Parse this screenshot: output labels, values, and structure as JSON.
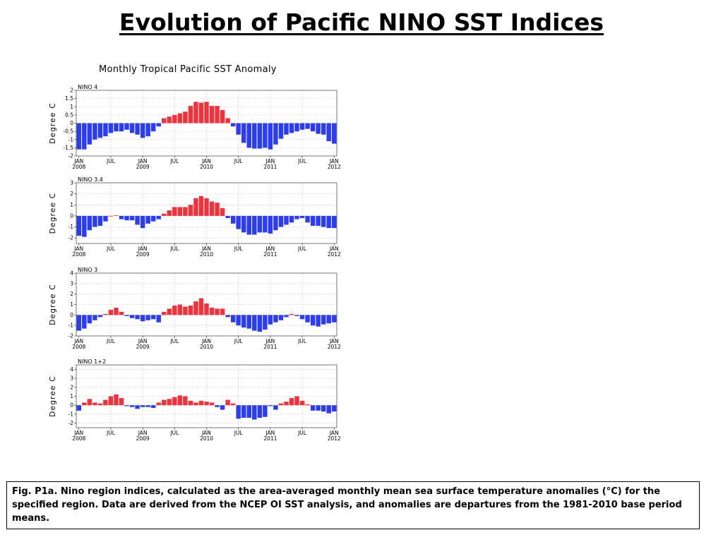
{
  "slide": {
    "title": "Evolution of Pacific NINO SST Indices"
  },
  "figure": {
    "title": "Monthly Tropical Pacific SST Anomaly"
  },
  "colors": {
    "positive": "#f0323c",
    "negative": "#2c3cf0",
    "grid": "#b0b0b0"
  },
  "chart_data": [
    {
      "type": "bar",
      "panel": "NINO  4",
      "ylabel": "Degree C",
      "ylim": [
        -2,
        2
      ],
      "yticks": [
        -2,
        -1.5,
        -1,
        -0.5,
        0,
        0.5,
        1,
        1.5,
        2
      ],
      "ytick_labels": [
        "-2",
        "-1.5",
        "-1",
        "-0.5",
        "0",
        "0.5",
        "1",
        "1.5",
        "2"
      ],
      "xtick_labels": [
        [
          "JAN",
          "2008"
        ],
        [
          "JUL",
          ""
        ],
        [
          "JAN",
          "2009"
        ],
        [
          "JUL",
          ""
        ],
        [
          "JAN",
          "2010"
        ],
        [
          "JUL",
          ""
        ],
        [
          "JAN",
          "2011"
        ],
        [
          "JUL",
          ""
        ],
        [
          "JAN",
          "2012"
        ]
      ],
      "grid": true,
      "x_start": "2008-01",
      "values": [
        -1.6,
        -1.6,
        -1.3,
        -1.0,
        -0.9,
        -0.8,
        -0.6,
        -0.5,
        -0.5,
        -0.4,
        -0.6,
        -0.7,
        -0.9,
        -0.8,
        -0.5,
        -0.2,
        0.3,
        0.4,
        0.5,
        0.6,
        0.7,
        1.05,
        1.3,
        1.25,
        1.3,
        1.05,
        1.05,
        0.8,
        0.3,
        -0.2,
        -0.7,
        -1.2,
        -1.5,
        -1.55,
        -1.55,
        -1.5,
        -1.6,
        -1.3,
        -0.95,
        -0.7,
        -0.6,
        -0.5,
        -0.4,
        -0.35,
        -0.5,
        -0.65,
        -0.7,
        -1.1,
        -1.25
      ]
    },
    {
      "type": "bar",
      "panel": "NINO  3.4",
      "ylabel": "Degree C",
      "ylim": [
        -2.5,
        3
      ],
      "yticks": [
        -2,
        -1,
        0,
        1,
        2,
        3
      ],
      "ytick_labels": [
        "-2",
        "-1",
        "0",
        "1",
        "2",
        "3"
      ],
      "xtick_labels": [
        [
          "JAN",
          "2008"
        ],
        [
          "JUL",
          ""
        ],
        [
          "JAN",
          "2009"
        ],
        [
          "JUL",
          ""
        ],
        [
          "JAN",
          "2010"
        ],
        [
          "JUL",
          ""
        ],
        [
          "JAN",
          "2011"
        ],
        [
          "JUL",
          ""
        ],
        [
          "JAN",
          "2012"
        ]
      ],
      "grid": true,
      "x_start": "2008-01",
      "values": [
        -1.8,
        -1.9,
        -1.3,
        -1.0,
        -0.9,
        -0.5,
        0.0,
        0.05,
        -0.3,
        -0.4,
        -0.4,
        -0.8,
        -1.1,
        -0.7,
        -0.5,
        -0.3,
        0.2,
        0.5,
        0.8,
        0.8,
        0.8,
        1.0,
        1.6,
        1.8,
        1.6,
        1.3,
        1.2,
        0.7,
        -0.2,
        -0.7,
        -1.2,
        -1.5,
        -1.7,
        -1.7,
        -1.5,
        -1.5,
        -1.6,
        -1.3,
        -1.0,
        -0.8,
        -0.6,
        -0.3,
        -0.2,
        -0.6,
        -0.9,
        -0.9,
        -1.0,
        -1.1,
        -1.1
      ]
    },
    {
      "type": "bar",
      "panel": "NINO  3",
      "ylabel": "Degree C",
      "ylim": [
        -2,
        4
      ],
      "yticks": [
        -2,
        -1,
        0,
        1,
        2,
        3,
        4
      ],
      "ytick_labels": [
        "-2",
        "-1",
        "0",
        "1",
        "2",
        "3",
        "4"
      ],
      "xtick_labels": [
        [
          "JAN",
          "2008"
        ],
        [
          "JUL",
          ""
        ],
        [
          "JAN",
          "2009"
        ],
        [
          "JUL",
          ""
        ],
        [
          "JAN",
          "2010"
        ],
        [
          "JUL",
          ""
        ],
        [
          "JAN",
          "2011"
        ],
        [
          "JUL",
          ""
        ],
        [
          "JAN",
          "2012"
        ]
      ],
      "grid": true,
      "x_start": "2008-01",
      "values": [
        -1.5,
        -1.3,
        -0.8,
        -0.5,
        -0.2,
        0.1,
        0.5,
        0.7,
        0.3,
        -0.1,
        -0.3,
        -0.4,
        -0.6,
        -0.5,
        -0.4,
        -0.7,
        0.3,
        0.6,
        0.9,
        1.0,
        0.8,
        0.9,
        1.3,
        1.6,
        1.1,
        0.7,
        0.6,
        0.6,
        -0.2,
        -0.7,
        -1.0,
        -1.2,
        -1.3,
        -1.5,
        -1.6,
        -1.4,
        -0.9,
        -0.7,
        -0.5,
        -0.2,
        0.1,
        -0.1,
        -0.4,
        -0.7,
        -1.0,
        -1.1,
        -0.9,
        -0.8,
        -0.7
      ]
    },
    {
      "type": "bar",
      "panel": "NINO  1+2",
      "ylabel": "Degree C",
      "ylim": [
        -2.5,
        4.5
      ],
      "yticks": [
        -2,
        -1,
        0,
        1,
        2,
        3,
        4
      ],
      "ytick_labels": [
        "-2",
        "-1",
        "0",
        "1",
        "2",
        "3",
        "4"
      ],
      "xtick_labels": [
        [
          "JAN",
          "2008"
        ],
        [
          "JUL",
          ""
        ],
        [
          "JAN",
          "2009"
        ],
        [
          "JUL",
          ""
        ],
        [
          "JAN",
          "2010"
        ],
        [
          "JUL",
          ""
        ],
        [
          "JAN",
          "2011"
        ],
        [
          "JUL",
          ""
        ],
        [
          "JAN",
          "2012"
        ]
      ],
      "grid": true,
      "x_start": "2008-01",
      "values": [
        -0.6,
        0.3,
        0.7,
        0.3,
        0.2,
        0.6,
        1.0,
        1.2,
        0.8,
        -0.1,
        -0.2,
        -0.4,
        -0.2,
        -0.2,
        -0.3,
        0.3,
        0.6,
        0.7,
        0.9,
        1.1,
        1.0,
        0.5,
        0.3,
        0.5,
        0.4,
        0.3,
        -0.2,
        -0.5,
        0.6,
        0.2,
        -1.5,
        -1.4,
        -1.4,
        -1.6,
        -1.4,
        -1.3,
        -0.1,
        -0.5,
        0.2,
        0.4,
        0.8,
        1.0,
        0.5,
        0.1,
        -0.6,
        -0.6,
        -0.7,
        -0.9,
        -0.7
      ]
    }
  ],
  "caption": "Fig. P1a. Nino region indices, calculated as the area-averaged monthly mean sea surface temperature anomalies (°C) for the specified region. Data are derived from the NCEP OI SST analysis, and anomalies are departures from the 1981-2010 base period means."
}
